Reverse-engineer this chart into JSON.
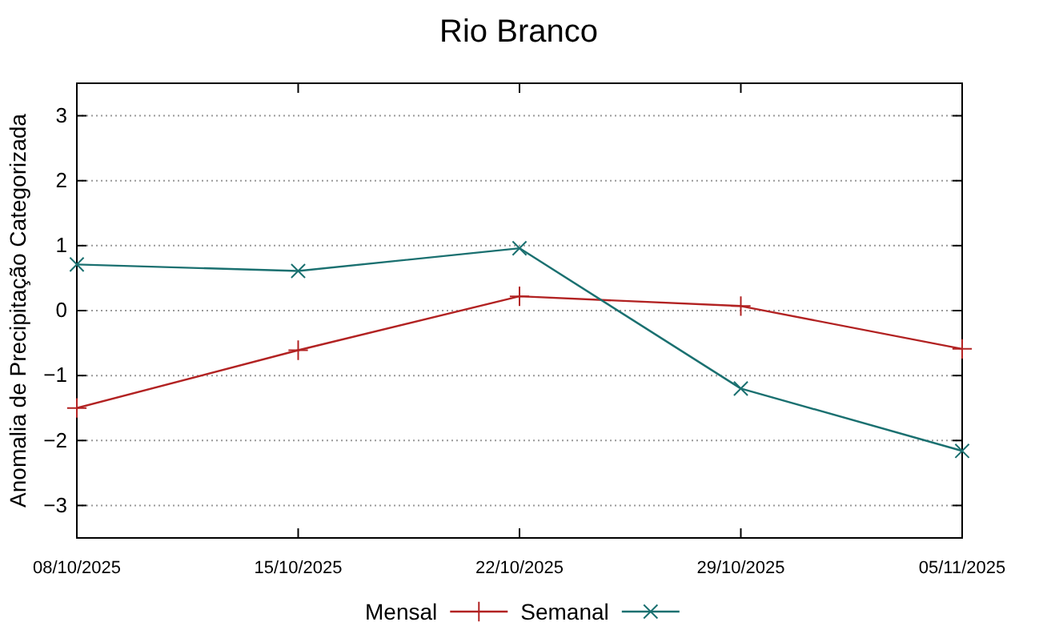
{
  "chart_data": {
    "type": "line",
    "title": "Rio Branco",
    "ylabel": "Anomalia de Precipitação Categorizada",
    "x": [
      "2025-10-08",
      "2025-10-15",
      "2025-10-22",
      "2025-10-29",
      "2025-11-05"
    ],
    "xlim": [
      "2025-10-08",
      "2025-11-05"
    ],
    "xticks": [
      {
        "value": "2025-10-08",
        "label": "08/10/2025"
      },
      {
        "value": "2025-10-15",
        "label": "15/10/2025"
      },
      {
        "value": "2025-10-22",
        "label": "22/10/2025"
      },
      {
        "value": "2025-10-29",
        "label": "29/10/2025"
      },
      {
        "value": "2025-11-05",
        "label": "05/11/2025"
      }
    ],
    "ylim": [
      -3.5,
      3.5
    ],
    "yticks": [
      -3,
      -2,
      -1,
      0,
      1,
      2,
      3
    ],
    "grid": "y",
    "legend": "bottom",
    "marker": "cross",
    "line_style": "solid",
    "series": [
      {
        "name": "Mensal",
        "color": "#b22222",
        "values": [
          -1.5,
          -0.61,
          0.22,
          0.07,
          -0.59
        ]
      },
      {
        "name": "Semanal",
        "color": "#1a7070",
        "values": [
          0.71,
          0.61,
          0.96,
          -1.2,
          -2.16
        ]
      }
    ]
  }
}
